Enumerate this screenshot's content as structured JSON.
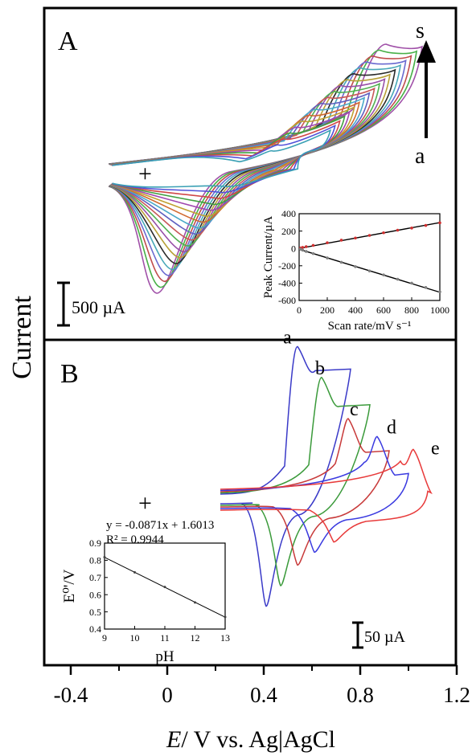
{
  "ylabel": "Current",
  "xaxis": {
    "label_italic": "E",
    "label_rest": "/ V vs. Ag|AgCl",
    "ticks": [
      "-0.4",
      "0",
      "0.4",
      "0.8",
      "1.2"
    ],
    "range": [
      -0.4,
      1.2
    ]
  },
  "panelA": {
    "label": "A",
    "plus": "+",
    "arrow_top": "s",
    "arrow_bottom": "a",
    "scalebar_label": "500 µA",
    "curve_colors": [
      "#3aa0b4",
      "#5050d8",
      "#d04848",
      "#40a040",
      "#a048b0",
      "#c0a030",
      "#d06a30",
      "#4aa8c8",
      "#6060c0",
      "#c85858",
      "#50b050",
      "#9850a8",
      "#b8a038",
      "#2a2a2a",
      "#48a8b8",
      "#6a6ad0",
      "#c04c4c",
      "#48b048",
      "#a050a8"
    ]
  },
  "panelB": {
    "label": "B",
    "plus": "+",
    "scalebar_label": "50 µA",
    "curves": [
      {
        "name": "a",
        "color": "#3a3ac8",
        "anodic_peak": [
          0.54,
          58
        ],
        "cathodic_peak": [
          0.41,
          -43
        ]
      },
      {
        "name": "b",
        "color": "#3a9a3a",
        "anodic_peak": [
          0.64,
          46
        ],
        "cathodic_peak": [
          0.47,
          -35
        ]
      },
      {
        "name": "c",
        "color": "#c83a3a",
        "anodic_peak": [
          0.75,
          30
        ],
        "cathodic_peak": [
          0.54,
          -27
        ]
      },
      {
        "name": "d",
        "color": "#3a3ae0",
        "anodic_peak": [
          0.87,
          23
        ],
        "cathodic_peak": [
          0.61,
          -22
        ]
      },
      {
        "name": "e",
        "color": "#e83a3a",
        "anodic_peak": [
          1.02,
          18
        ],
        "cathodic_peak": [
          0.69,
          -18
        ]
      }
    ]
  },
  "chart_data": [
    {
      "type": "scatter",
      "panel": "A inset",
      "xlabel": "Scan rate/mV s⁻¹",
      "ylabel": "Peak Current/µA",
      "xlim": [
        0,
        1000
      ],
      "ylim": [
        -600,
        400
      ],
      "xticks": [
        "0",
        "200",
        "400",
        "600",
        "800",
        "1000"
      ],
      "yticks": [
        "400",
        "200",
        "0",
        "-200",
        "-400",
        "-600"
      ],
      "series": [
        {
          "color": "#d03030",
          "x": [
            10,
            25,
            50,
            100,
            200,
            300,
            400,
            500,
            600,
            700,
            800,
            900,
            1000
          ],
          "y": [
            5,
            12,
            20,
            35,
            65,
            95,
            120,
            150,
            180,
            210,
            235,
            265,
            295
          ]
        },
        {
          "color": "#808080",
          "x": [
            10,
            25,
            50,
            100,
            200,
            300,
            400,
            500,
            600,
            700,
            800,
            900,
            1000
          ],
          "y": [
            -8,
            -20,
            -35,
            -60,
            -110,
            -160,
            -210,
            -260,
            -305,
            -355,
            -400,
            -450,
            -500
          ]
        }
      ],
      "fit_lines": [
        {
          "x": [
            0,
            1000
          ],
          "y": [
            0,
            298
          ]
        },
        {
          "x": [
            0,
            1000
          ],
          "y": [
            -10,
            -505
          ]
        }
      ]
    },
    {
      "type": "scatter",
      "panel": "B inset",
      "xlabel": "pH",
      "ylabel": "E⁰'/V",
      "xlim": [
        9,
        13
      ],
      "ylim": [
        0.4,
        0.9
      ],
      "xticks": [
        "9",
        "10",
        "11",
        "12",
        "13"
      ],
      "yticks": [
        "0.9",
        "0.8",
        "0.7",
        "0.6",
        "0.5",
        "0.4"
      ],
      "series": [
        {
          "color": "#404040",
          "x": [
            9,
            10,
            11,
            12,
            13
          ],
          "y": [
            0.818,
            0.73,
            0.645,
            0.555,
            0.47
          ]
        }
      ],
      "fit_lines": [
        {
          "x": [
            9,
            13
          ],
          "y": [
            0.8174,
            0.469
          ]
        }
      ],
      "annotations": [
        "y = -0.0871x + 1.6013",
        "R² = 0.9944"
      ]
    }
  ]
}
